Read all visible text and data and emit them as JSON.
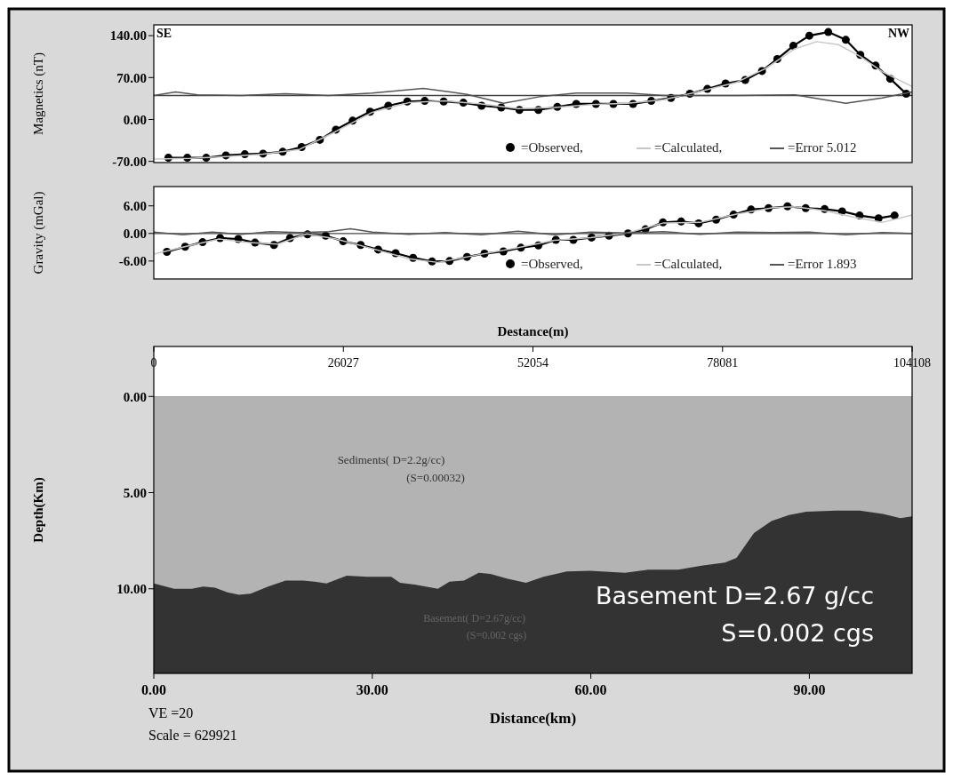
{
  "chart_data": [
    {
      "type": "line",
      "ylabel": "Magnetics (nT)",
      "xlim": [
        0,
        104.108
      ],
      "ylim": [
        -72,
        158
      ],
      "yticks": [
        {
          "value": -70,
          "label": "-70.00"
        },
        {
          "value": 0,
          "label": "0.00"
        },
        {
          "value": 70,
          "label": "70.00"
        },
        {
          "value": 140,
          "label": "140.00"
        }
      ],
      "tick_labels": "y",
      "legend": "bottom right",
      "annotations": [
        "SE",
        "NW"
      ],
      "ref_lines": [
        {
          "axis": "y",
          "value": 40,
          "color": "#444444"
        }
      ],
      "series": [
        {
          "name": "=Observed,",
          "color": "#000000",
          "marker": "circle",
          "x": [
            2.0,
            4.6,
            7.2,
            9.9,
            12.5,
            15.0,
            17.7,
            20.3,
            22.8,
            25.0,
            27.3,
            29.7,
            32.2,
            34.8,
            37.2,
            39.8,
            42.5,
            45.0,
            47.7,
            50.2,
            52.8,
            55.4,
            58.0,
            60.7,
            63.1,
            65.8,
            68.3,
            71.0,
            73.6,
            76.0,
            78.5,
            81.2,
            83.5,
            85.6,
            87.8,
            90.0,
            92.6,
            95.0,
            97.0,
            99.1,
            101.1,
            103.3
          ],
          "values": [
            -64,
            -64,
            -64,
            -60,
            -58,
            -57,
            -54,
            -46,
            -34,
            -17,
            -2,
            13,
            23,
            30,
            31,
            30,
            28,
            23,
            20,
            16,
            16,
            21,
            26,
            26,
            26,
            26,
            31,
            36,
            43,
            51,
            60,
            66,
            81,
            101,
            123,
            140,
            146,
            133,
            108,
            90,
            68,
            43
          ]
        },
        {
          "name": "=Calculated,",
          "color": "#c8c8c8",
          "marker": "none",
          "x": [
            0,
            5,
            10,
            15,
            20,
            25,
            30,
            35,
            40,
            45,
            50,
            55,
            60,
            65,
            70,
            75,
            80,
            84,
            88,
            91,
            94,
            97,
            100,
            104.1
          ],
          "values": [
            -66,
            -65,
            -62,
            -58,
            -50,
            -20,
            12,
            28,
            31,
            26,
            18,
            20,
            25,
            27,
            33,
            47,
            62,
            85,
            118,
            130,
            125,
            105,
            80,
            55
          ]
        },
        {
          "name": "=Error 5.012",
          "color": "#555555",
          "marker": "none",
          "x": [
            0,
            3,
            6,
            12,
            18,
            24,
            30,
            37,
            43,
            48,
            53,
            58,
            65,
            70,
            80,
            88,
            95,
            100,
            104.1
          ],
          "values": [
            40,
            46,
            41,
            40,
            43,
            40,
            44,
            52,
            42,
            27,
            38,
            44,
            44,
            40,
            40,
            41,
            27,
            36,
            46
          ]
        }
      ]
    },
    {
      "type": "line",
      "ylabel": "Gravity (mGal)",
      "xlim": [
        0,
        104.108
      ],
      "ylim": [
        -9.9,
        10.2
      ],
      "yticks": [
        {
          "value": -6,
          "label": "-6.00"
        },
        {
          "value": 0,
          "label": "0.00"
        },
        {
          "value": 6,
          "label": "6.00"
        }
      ],
      "tick_labels": "y",
      "legend": "bottom right",
      "ref_lines": [
        {
          "axis": "y",
          "value": 0,
          "color": "#444444"
        }
      ],
      "series": [
        {
          "name": "=Observed,",
          "color": "#000000",
          "marker": "circle",
          "x": [
            1.8,
            4.3,
            6.7,
            9.1,
            11.6,
            13.9,
            16.5,
            18.7,
            21.1,
            23.6,
            26.0,
            28.4,
            30.8,
            33.2,
            35.6,
            38.2,
            40.6,
            43.0,
            45.4,
            48.0,
            50.4,
            52.8,
            55.2,
            57.6,
            60.1,
            62.5,
            65.1,
            67.5,
            69.9,
            72.4,
            74.8,
            77.2,
            79.6,
            82.0,
            84.4,
            87.0,
            89.5,
            92.1,
            94.5,
            96.9,
            99.5,
            101.7
          ],
          "values": [
            -4.0,
            -2.9,
            -1.9,
            -1.0,
            -1.2,
            -2.0,
            -2.5,
            -1.0,
            -0.2,
            -0.5,
            -1.7,
            -2.5,
            -3.5,
            -4.3,
            -5.3,
            -6.1,
            -6.0,
            -5.1,
            -4.4,
            -3.9,
            -3.1,
            -2.6,
            -1.4,
            -1.4,
            -0.9,
            -0.5,
            0,
            0.9,
            2.4,
            2.6,
            2.2,
            3.0,
            4.1,
            5.2,
            5.5,
            5.9,
            5.5,
            5.3,
            4.8,
            3.9,
            3.3,
            3.9
          ]
        },
        {
          "name": "=Calculated,",
          "color": "#c8c8c8",
          "marker": "none",
          "x": [
            0,
            5,
            9,
            13,
            17,
            21,
            25,
            30,
            35,
            39,
            44,
            50,
            55,
            60,
            65,
            70,
            75,
            80,
            85,
            88,
            92,
            96,
            100,
            104.1
          ],
          "values": [
            -4.5,
            -2.6,
            -1.2,
            -2.0,
            -2.3,
            -0.1,
            -1.2,
            -3.3,
            -5.5,
            -6.3,
            -4.8,
            -3.1,
            -1.5,
            -0.9,
            0.1,
            2.3,
            2.4,
            4.2,
            5.6,
            5.8,
            5.0,
            3.6,
            2.4,
            4.0
          ]
        },
        {
          "name": "=Error 1.893",
          "color": "#555555",
          "marker": "none",
          "x": [
            0,
            4,
            8,
            12,
            16,
            20,
            24,
            27,
            30,
            35,
            40,
            45,
            50,
            55,
            60,
            65,
            70,
            75,
            80,
            85,
            90,
            95,
            100,
            104.1
          ],
          "values": [
            0.3,
            -0.3,
            0.3,
            -0.2,
            0.4,
            0.2,
            0.4,
            1.0,
            0.3,
            -0.2,
            0.2,
            -0.3,
            0.5,
            -0.3,
            0.3,
            0.1,
            0.4,
            -0.2,
            0.3,
            0.2,
            0.3,
            -0.3,
            0.2,
            0
          ]
        }
      ]
    },
    {
      "type": "area",
      "ylabel": "Depth(Km)",
      "xlabel": "Distance(km)",
      "x2label": "Destance(m)",
      "xlim": [
        0,
        104.108
      ],
      "ylim": [
        14.4,
        -2.6
      ],
      "xticks": [
        {
          "value": 0,
          "label": "0.00"
        },
        {
          "value": 30,
          "label": "30.00"
        },
        {
          "value": 60,
          "label": "60.00"
        },
        {
          "value": 90,
          "label": "90.00"
        }
      ],
      "yticks": [
        {
          "value": 0,
          "label": "0.00"
        },
        {
          "value": 5,
          "label": "5.00"
        },
        {
          "value": 10,
          "label": "10.00"
        }
      ],
      "x2lim": [
        0,
        104108
      ],
      "x2ticks": [
        0,
        26027,
        52054,
        78081,
        104108
      ],
      "bands": [
        {
          "axis": "y",
          "from": 0,
          "to": 14.4,
          "color": "#333333"
        }
      ],
      "annotations": [
        "Sediments( D=2.2g/cc)",
        "(S=0.00032)",
        "Basement( D=2.67g/cc)",
        "(S=0.002 cgs)",
        "Basement D=2.67 g/cc",
        "S=0.002 cgs",
        "VE =20",
        "Scale = 629921"
      ],
      "series": [
        {
          "color": "#b3b3b3",
          "x": [
            0,
            2.8,
            5.2,
            6.8,
            8.4,
            10.1,
            11.7,
            13.3,
            15.7,
            18.1,
            20.5,
            22.1,
            23.7,
            26.5,
            29.3,
            32.6,
            33.8,
            35.8,
            39.0,
            40.6,
            42.6,
            44.6,
            46.2,
            48.6,
            51.1,
            53.5,
            56.7,
            59.9,
            64.7,
            67.9,
            72.0,
            75.2,
            78.4,
            80.0,
            82.4,
            84.8,
            87.2,
            89.6,
            93.7,
            96.9,
            100.1,
            102.5,
            104.1
          ],
          "values": [
            9.72,
            10.0,
            10.0,
            9.88,
            9.94,
            10.19,
            10.31,
            10.25,
            9.88,
            9.57,
            9.57,
            9.63,
            9.72,
            9.32,
            9.38,
            9.38,
            9.69,
            9.78,
            10.0,
            9.63,
            9.57,
            9.17,
            9.23,
            9.48,
            9.69,
            9.38,
            9.1,
            9.07,
            9.17,
            9.01,
            9.01,
            8.8,
            8.64,
            8.4,
            7.1,
            6.48,
            6.17,
            5.99,
            5.93,
            5.93,
            6.11,
            6.33,
            6.23
          ]
        }
      ]
    }
  ]
}
